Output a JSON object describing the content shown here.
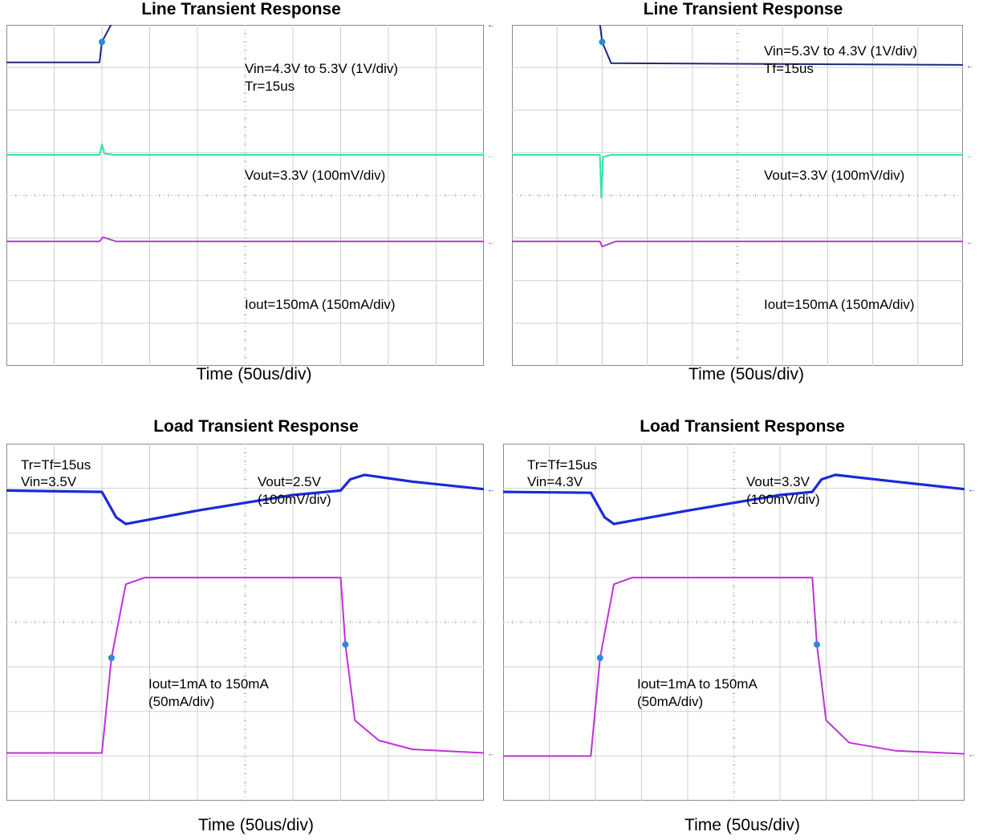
{
  "chart_data": [
    {
      "type": "line",
      "title": "Line Transient Response",
      "xlabel": "Time (50us/div)",
      "x_divisions": 10,
      "y_divisions": 8,
      "annotations": [
        "Vin=4.3V to 5.3V (1V/div)",
        "Tr=15us",
        "Vout=3.3V (100mV/div)",
        "Iout=150mA (150mA/div)"
      ],
      "series": [
        {
          "color": "#1e2a7a",
          "x": [
            0,
            1.95,
            2.0,
            2.2,
            10
          ],
          "y": [
            7.12,
            7.12,
            7.6,
            8.02,
            8.02
          ]
        },
        {
          "color": "#2ee8a0",
          "x": [
            0,
            1.95,
            2.0,
            2.05,
            2.25,
            10
          ],
          "y": [
            4.95,
            4.95,
            5.2,
            4.98,
            4.95,
            4.95
          ]
        },
        {
          "color": "#b040c8",
          "x": [
            0,
            1.95,
            2.02,
            2.3,
            10
          ],
          "y": [
            2.92,
            2.92,
            3.02,
            2.92,
            2.92
          ]
        }
      ]
    },
    {
      "type": "line",
      "title": "Line Transient Response",
      "xlabel": "Time (50us/div)",
      "x_divisions": 10,
      "y_divisions": 8,
      "annotations": [
        "Vin=5.3V to 4.3V (1V/div)",
        "Tf=15us",
        "Vout=3.3V (100mV/div)",
        "Iout=150mA (150mA/div)"
      ],
      "series": [
        {
          "color": "#1e2a7a",
          "x": [
            0,
            1.95,
            2.0,
            2.2,
            10
          ],
          "y": [
            8.02,
            8.02,
            7.6,
            7.1,
            7.06
          ]
        },
        {
          "color": "#2ee8a0",
          "x": [
            0,
            1.95,
            1.98,
            2.02,
            2.2,
            10
          ],
          "y": [
            4.95,
            4.95,
            3.95,
            4.9,
            4.95,
            4.95
          ]
        },
        {
          "color": "#b040c8",
          "x": [
            0,
            1.95,
            2.0,
            2.3,
            10
          ],
          "y": [
            2.92,
            2.92,
            2.8,
            2.92,
            2.92
          ]
        }
      ]
    },
    {
      "type": "line",
      "title": "Load Transient Response",
      "xlabel": "Time (50us/div)",
      "x_divisions": 10,
      "y_divisions": 8,
      "annotations": [
        "Tr=Tf=15us",
        "Vin=3.5V",
        "Vout=2.5V",
        "(100mV/div)",
        "Iout=1mA to 150mA",
        "(50mA/div)"
      ],
      "series": [
        {
          "color": "#1a2ad8",
          "x": [
            0,
            2.0,
            2.3,
            2.5,
            4.0,
            6.0,
            7.0,
            7.2,
            7.5,
            8.5,
            10
          ],
          "y": [
            6.95,
            6.92,
            6.35,
            6.2,
            6.5,
            6.85,
            6.95,
            7.2,
            7.3,
            7.15,
            6.98
          ]
        },
        {
          "color": "#c030d8",
          "x": [
            0,
            2.0,
            2.2,
            2.5,
            2.9,
            7.0,
            7.1,
            7.3,
            7.8,
            8.5,
            10
          ],
          "y": [
            1.07,
            1.07,
            3.2,
            4.85,
            5.0,
            5.0,
            3.5,
            1.8,
            1.35,
            1.15,
            1.07
          ]
        }
      ]
    },
    {
      "type": "line",
      "title": "Load Transient Response",
      "xlabel": "Time (50us/div)",
      "x_divisions": 10,
      "y_divisions": 8,
      "annotations": [
        "Tr=Tf=15us",
        "Vin=4.3V",
        "Vout=3.3V",
        "(100mV/div)",
        "Iout=1mA to 150mA",
        "(50mA/div)"
      ],
      "series": [
        {
          "color": "#1a2ad8",
          "x": [
            0,
            1.9,
            2.2,
            2.4,
            4.0,
            6.0,
            6.7,
            6.9,
            7.2,
            8.5,
            10
          ],
          "y": [
            6.92,
            6.9,
            6.35,
            6.2,
            6.5,
            6.85,
            6.92,
            7.2,
            7.3,
            7.15,
            6.98
          ]
        },
        {
          "color": "#c030d8",
          "x": [
            0,
            1.9,
            2.1,
            2.4,
            2.8,
            6.7,
            6.8,
            7.0,
            7.5,
            8.5,
            10
          ],
          "y": [
            1.0,
            1.0,
            3.2,
            4.85,
            5.0,
            5.0,
            3.5,
            1.8,
            1.3,
            1.12,
            1.05
          ]
        }
      ]
    }
  ]
}
